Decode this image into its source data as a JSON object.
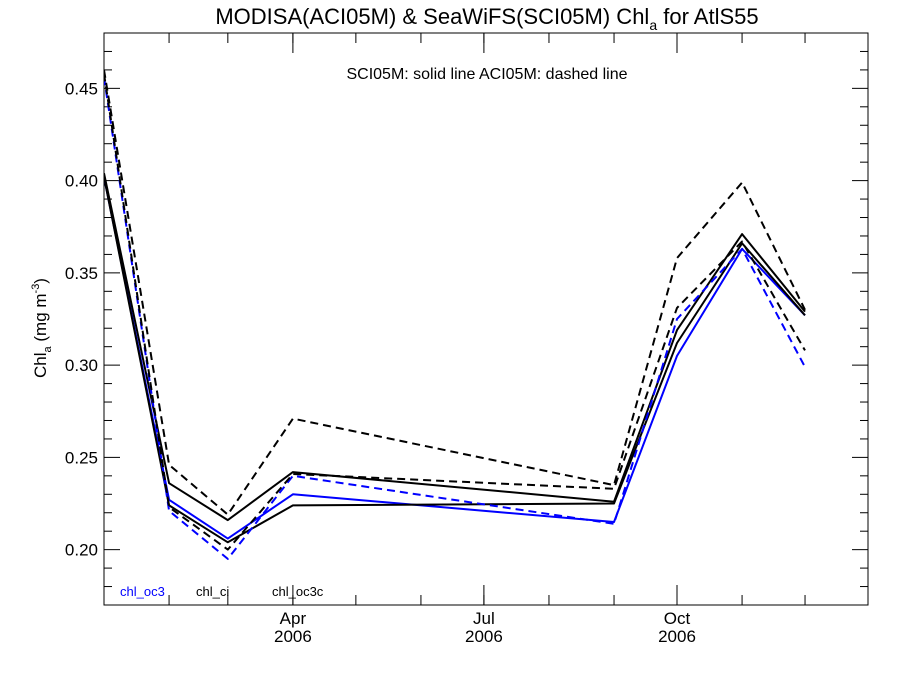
{
  "chart_data": {
    "type": "line",
    "title": {
      "prefix": "MODISA(ACI05M) & SeaWiFS(SCI05M)  Chl",
      "subscript": "a",
      "suffix": " for AtlS55"
    },
    "annotation": "SCI05M: solid line   ACI05M: dashed line",
    "ylabel": {
      "prefix": "Chl",
      "subscript": "a",
      "middle": " (mg m",
      "superscript": "-3",
      "suffix": ")"
    },
    "ylim": [
      0.17,
      0.48
    ],
    "yticks": [
      0.2,
      0.25,
      0.3,
      0.35,
      0.4,
      0.45
    ],
    "ytick_labels": [
      "0.20",
      "0.25",
      "0.30",
      "0.35",
      "0.40",
      "0.45"
    ],
    "xlim": [
      "2006-01-01",
      "2006-12-31"
    ],
    "xticks": [
      {
        "date": "2006-04-01",
        "label": "Apr",
        "year": "2006"
      },
      {
        "date": "2006-07-01",
        "label": "Jul",
        "year": "2006"
      },
      {
        "date": "2006-10-01",
        "label": "Oct",
        "year": "2006"
      }
    ],
    "x": [
      "2006-01-01",
      "2006-02-01",
      "2006-03-01",
      "2006-04-01",
      "2006-09-01",
      "2006-10-01",
      "2006-11-01",
      "2006-12-01"
    ],
    "series": [
      {
        "name": "chl_oc3",
        "sensor": "SCI05M",
        "color": "#0000ff",
        "dash": false,
        "values": [
          0.402,
          0.227,
          0.206,
          0.23,
          0.215,
          0.305,
          0.363,
          0.327
        ]
      },
      {
        "name": "chl_ci",
        "sensor": "SCI05M",
        "color": "#000000",
        "dash": false,
        "values": [
          0.402,
          0.224,
          0.204,
          0.224,
          0.225,
          0.312,
          0.366,
          0.327
        ]
      },
      {
        "name": "chl_oc3c",
        "sensor": "SCI05M",
        "color": "#000000",
        "dash": false,
        "values": [
          0.404,
          0.236,
          0.216,
          0.242,
          0.226,
          0.319,
          0.371,
          0.329
        ]
      },
      {
        "name": "chl_oc3",
        "sensor": "ACI05M",
        "color": "#0000ff",
        "dash": true,
        "values": [
          0.456,
          0.221,
          0.195,
          0.24,
          0.214,
          0.325,
          0.363,
          0.299
        ]
      },
      {
        "name": "chl_ci",
        "sensor": "ACI05M",
        "color": "#000000",
        "dash": true,
        "values": [
          0.458,
          0.223,
          0.2,
          0.241,
          0.233,
          0.331,
          0.367,
          0.308
        ]
      },
      {
        "name": "chl_oc3c",
        "sensor": "ACI05M",
        "color": "#000000",
        "dash": true,
        "values": [
          0.46,
          0.246,
          0.219,
          0.271,
          0.235,
          0.358,
          0.399,
          0.33
        ]
      }
    ],
    "legend": [
      {
        "label": "chl_oc3",
        "color": "#0000ff"
      },
      {
        "label": "chl_ci",
        "color": "#000000"
      },
      {
        "label": "chl_oc3c",
        "color": "#000000"
      }
    ],
    "legend_position": "bottom-left",
    "grid": false
  }
}
